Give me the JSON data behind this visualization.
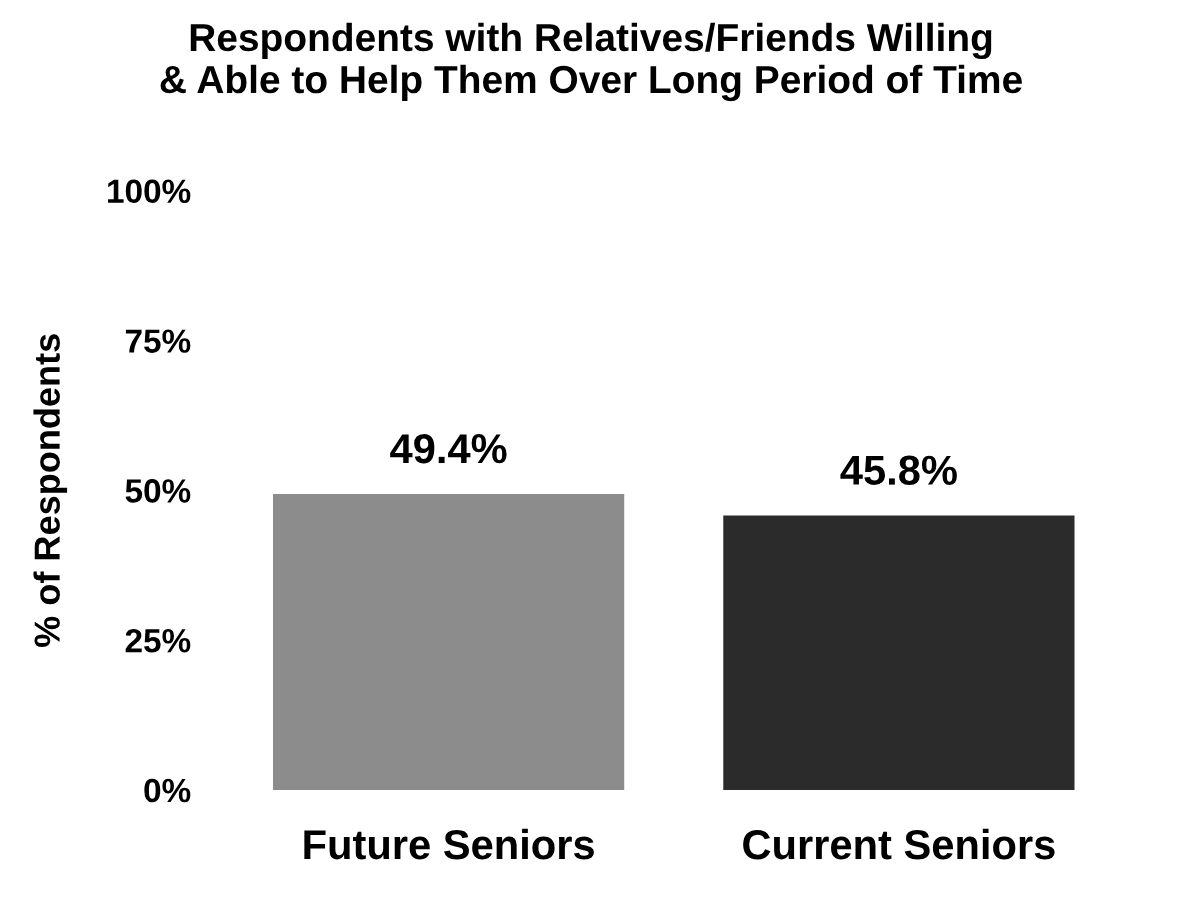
{
  "chart_data": {
    "type": "bar",
    "title": "Respondents with Relatives/Friends Willing\n& Able to Help Them Over Long Period of Time",
    "ylabel": "% of Respondents",
    "categories": [
      "Future Seniors",
      "Current Seniors"
    ],
    "values": [
      49.4,
      45.8
    ],
    "value_labels": [
      "49.4%",
      "45.8%"
    ],
    "colors": [
      "#8c8c8c",
      "#2b2b2b"
    ],
    "ylim": [
      0,
      100
    ],
    "yticks": [
      {
        "value": 0,
        "label": "0%"
      },
      {
        "value": 25,
        "label": "25%"
      },
      {
        "value": 50,
        "label": "50%"
      },
      {
        "value": 75,
        "label": "75%"
      },
      {
        "value": 100,
        "label": "100%"
      }
    ],
    "grid": false,
    "legend": false
  }
}
